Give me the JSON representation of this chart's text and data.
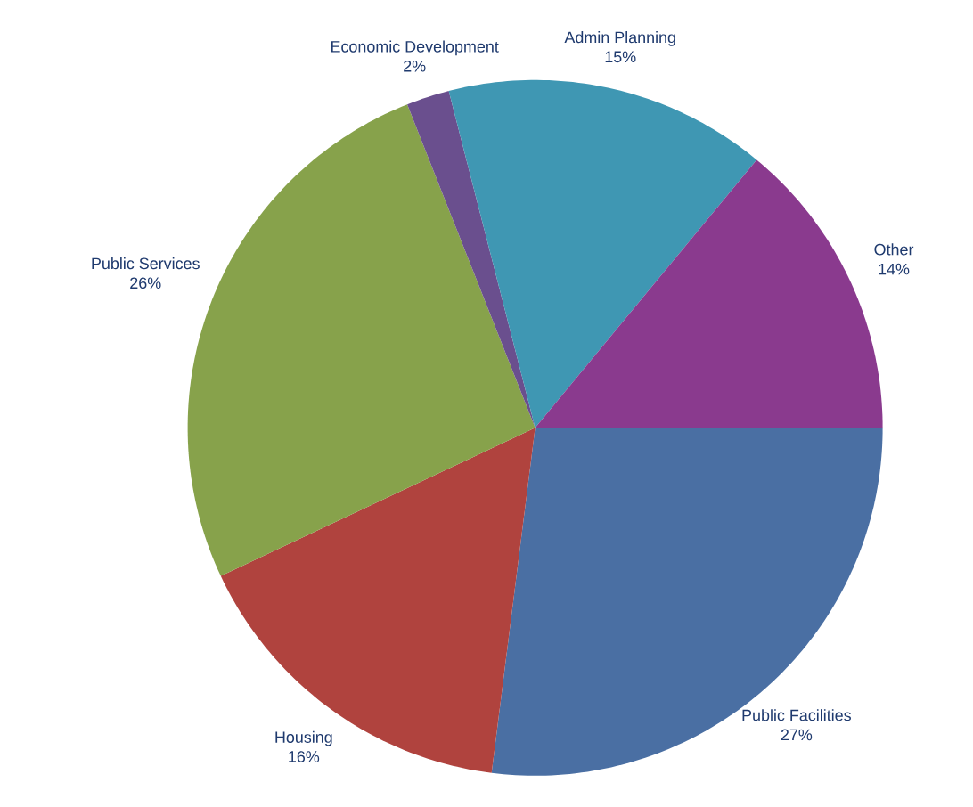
{
  "chart_data": {
    "type": "pie",
    "categories": [
      "Public Facilities",
      "Housing",
      "Public Services",
      "Economic Development",
      "Admin Planning",
      "Other"
    ],
    "values": [
      27,
      16,
      26,
      2,
      15,
      14
    ],
    "value_labels": [
      "27%",
      "16%",
      "26%",
      "2%",
      "15%",
      "14%"
    ],
    "colors": [
      "#4a6fa3",
      "#b0433e",
      "#87a24b",
      "#6a4f8e",
      "#3f97b3",
      "#8a3a8e"
    ]
  }
}
